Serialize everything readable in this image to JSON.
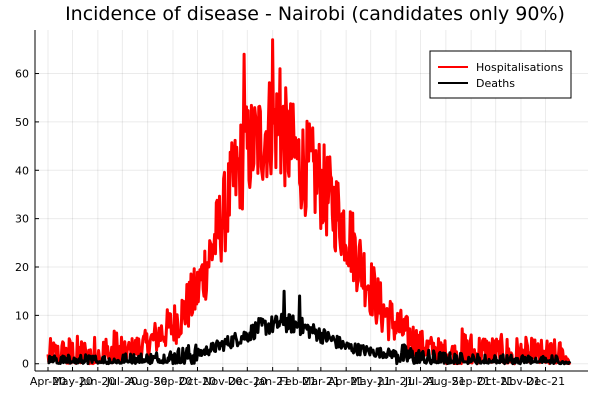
{
  "chart_data": {
    "type": "line",
    "title": "Incidence of disease - Nairobi (candidates only 90%)",
    "xlabel": "",
    "ylabel": "",
    "grid": true,
    "legend_position": "top-right",
    "x_start": "2020-04-01",
    "x_end": "2021-12-31",
    "x_ticks": [
      "Apr-20",
      "May-20",
      "Jun-20",
      "Jul-20",
      "Aug-20",
      "Sep-20",
      "Oct-20",
      "Nov-20",
      "Dec-20",
      "Jan-21",
      "Feb-21",
      "Mar-21",
      "Apr-21",
      "May-21",
      "Jun-21",
      "Jul-21",
      "Aug-21",
      "Sep-21",
      "Oct-21",
      "Nov-21",
      "Dec-21"
    ],
    "y_ticks": [
      0,
      10,
      20,
      30,
      40,
      50,
      60
    ],
    "ylim": [
      -1.5,
      69
    ],
    "series": [
      {
        "name": "Hospitalisations",
        "color": "#ff0000",
        "stroke_width": 3,
        "x": [
          "2020-04-01",
          "2020-04-15",
          "2020-05-01",
          "2020-05-15",
          "2020-06-01",
          "2020-06-15",
          "2020-07-01",
          "2020-07-15",
          "2020-08-01",
          "2020-08-15",
          "2020-09-01",
          "2020-09-15",
          "2020-10-01",
          "2020-10-15",
          "2020-11-01",
          "2020-11-15",
          "2020-12-01",
          "2020-12-15",
          "2021-01-01",
          "2021-01-15",
          "2021-02-01",
          "2021-02-15",
          "2021-03-01",
          "2021-03-15",
          "2021-04-01",
          "2021-04-15",
          "2021-05-01",
          "2021-05-15",
          "2021-06-01",
          "2021-06-15",
          "2021-07-01",
          "2021-07-15",
          "2021-08-01",
          "2021-08-15",
          "2021-09-01",
          "2021-09-15",
          "2021-10-01",
          "2021-10-15",
          "2021-11-01",
          "2021-11-15",
          "2021-12-01",
          "2021-12-31"
        ],
        "values": [
          0.5,
          0.8,
          1.0,
          0.8,
          1.0,
          1.5,
          2.0,
          3.0,
          4.0,
          6.0,
          8.0,
          11.0,
          15.0,
          22.0,
          30.0,
          38.0,
          44.0,
          46.0,
          50.0,
          47.0,
          42.0,
          40.0,
          37.0,
          33.0,
          28.0,
          22.0,
          16.0,
          11.0,
          8.0,
          6.0,
          4.0,
          3.0,
          2.5,
          2.0,
          1.5,
          1.5,
          1.0,
          1.0,
          0.8,
          0.6,
          0.5,
          0.5
        ],
        "noise": 3.5
      },
      {
        "name": "Deaths",
        "color": "#000000",
        "stroke_width": 3,
        "x": [
          "2020-04-01",
          "2020-06-01",
          "2020-08-01",
          "2020-09-01",
          "2020-10-01",
          "2020-11-01",
          "2020-12-01",
          "2020-12-15",
          "2021-01-01",
          "2021-01-15",
          "2021-02-01",
          "2021-02-15",
          "2021-03-01",
          "2021-03-15",
          "2021-04-01",
          "2021-05-01",
          "2021-06-01",
          "2021-07-01",
          "2021-08-01",
          "2021-09-01",
          "2021-10-01",
          "2021-12-31"
        ],
        "values": [
          0.1,
          0.2,
          0.5,
          1.0,
          2.0,
          4.0,
          6.0,
          7.5,
          8.0,
          8.5,
          8.0,
          7.0,
          6.0,
          5.0,
          3.5,
          2.5,
          2.0,
          1.0,
          0.5,
          0.3,
          0.2,
          0.1
        ],
        "noise": 1.5
      }
    ],
    "outlier_peaks": [
      {
        "series": "Hospitalisations",
        "x": "2020-11-27",
        "y": 64
      },
      {
        "series": "Hospitalisations",
        "x": "2021-01-01",
        "y": 67
      },
      {
        "series": "Hospitalisations",
        "x": "2021-01-10",
        "y": 61
      },
      {
        "series": "Deaths",
        "x": "2021-01-15",
        "y": 15
      },
      {
        "series": "Deaths",
        "x": "2021-02-03",
        "y": 14
      }
    ]
  }
}
